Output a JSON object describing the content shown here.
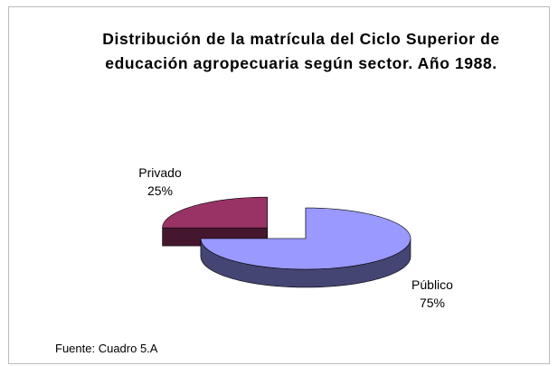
{
  "chart_data": {
    "type": "pie3d",
    "title": "Distribución de la matrícula del Ciclo Superior de educación agropecuaria según sector. Año 1988.",
    "categories": [
      "Público",
      "Privado"
    ],
    "values": [
      75,
      25
    ],
    "value_labels": [
      "75%",
      "25%"
    ],
    "colors": [
      "#9999ff",
      "#993366"
    ],
    "explode": [
      false,
      true
    ],
    "source": "Fuente: Cuadro 5.A"
  }
}
